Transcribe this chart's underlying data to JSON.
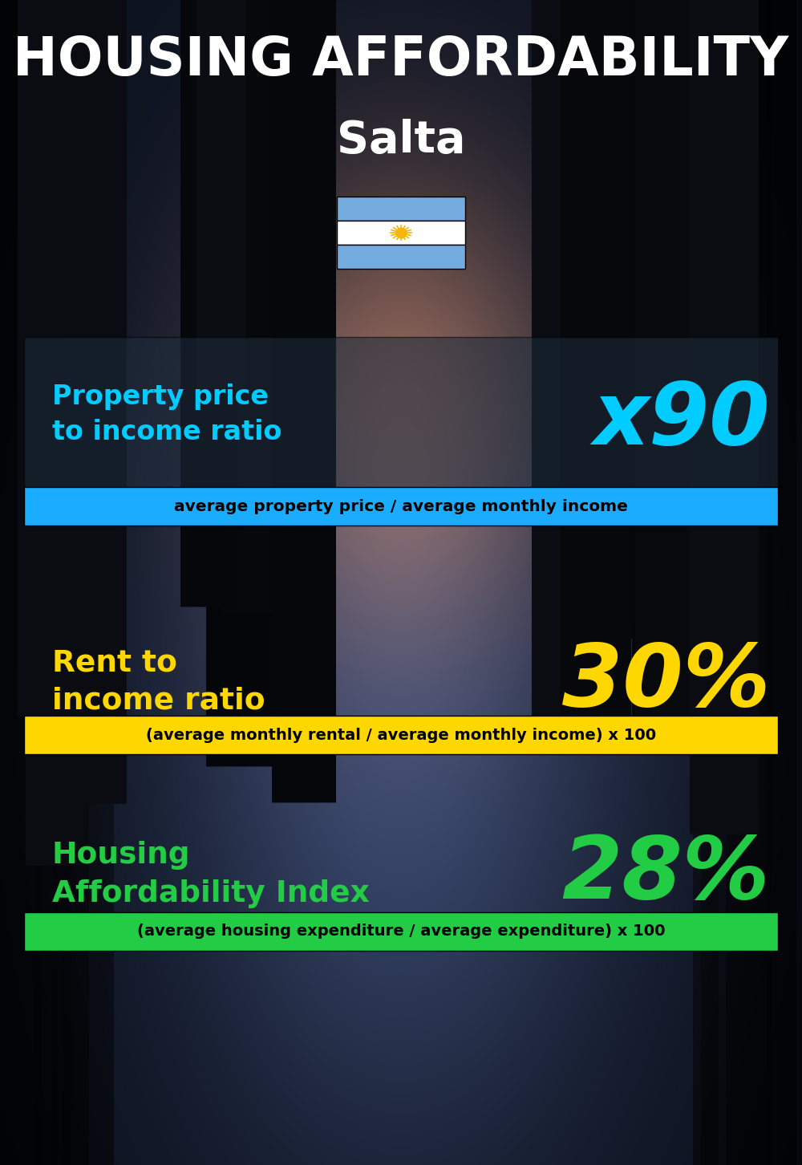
{
  "title_line1": "HOUSING AFFORDABILITY",
  "title_line2": "Salta",
  "bg_color": "#0d1117",
  "section1_label": "Property price\nto income ratio",
  "section1_value": "x90",
  "section1_label_color": "#00ccff",
  "section1_value_color": "#00ccff",
  "section1_formula": "average property price / average monthly income",
  "section1_formula_bg": "#1aadff",
  "section1_formula_text_color": "#000000",
  "section1_panel_color": "#1e2d3e",
  "section1_panel_alpha": 0.55,
  "section2_label": "Rent to\nincome ratio",
  "section2_value": "30%",
  "section2_label_color": "#ffd700",
  "section2_value_color": "#ffd700",
  "section2_formula": "(average monthly rental / average monthly income) x 100",
  "section2_formula_bg": "#ffd700",
  "section2_formula_text_color": "#000000",
  "section3_label": "Housing\nAffordability Index",
  "section3_value": "28%",
  "section3_label_color": "#22cc44",
  "section3_value_color": "#22cc44",
  "section3_formula": "(average housing expenditure / average expenditure) x 100",
  "section3_formula_bg": "#22cc44",
  "section3_formula_text_color": "#000000",
  "title_color": "#ffffff",
  "subtitle_color": "#ffffff",
  "flag_blue": "#74acdf",
  "flag_white": "#ffffff",
  "flag_sun": "#f6b40e",
  "fig_width": 10.0,
  "fig_height": 14.52
}
